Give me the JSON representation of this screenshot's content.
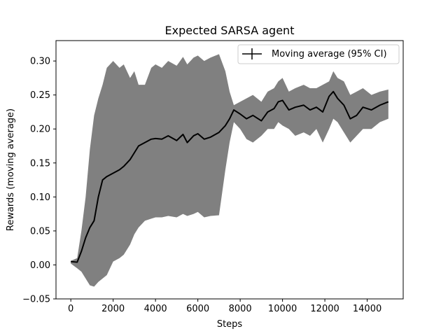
{
  "chart_data": {
    "type": "line",
    "title": "Expected SARSA agent",
    "xlabel": "Steps",
    "ylabel": "Rewards (moving average)",
    "xlim": [
      -700,
      15700
    ],
    "ylim": [
      -0.05,
      0.33
    ],
    "xticks": [
      0,
      2000,
      4000,
      6000,
      8000,
      10000,
      12000,
      14000
    ],
    "yticks": [
      -0.05,
      0.0,
      0.05,
      0.1,
      0.15,
      0.2,
      0.25,
      0.3
    ],
    "xtick_labels": [
      "0",
      "2000",
      "4000",
      "6000",
      "8000",
      "10000",
      "12000",
      "14000"
    ],
    "ytick_labels": [
      "−0.05",
      "0.00",
      "0.05",
      "0.10",
      "0.15",
      "0.20",
      "0.25",
      "0.30"
    ],
    "grid": false,
    "legend_position": "top-right",
    "colors": {
      "line": "#000000",
      "band": "#808080"
    },
    "series": [
      {
        "name": "Moving average (95% CI)",
        "x": [
          0,
          300,
          500,
          700,
          900,
          1100,
          1300,
          1500,
          1700,
          2000,
          2300,
          2500,
          2800,
          3000,
          3200,
          3500,
          3800,
          4000,
          4300,
          4600,
          5000,
          5300,
          5500,
          5800,
          6000,
          6300,
          6600,
          7000,
          7300,
          7500,
          7700,
          8000,
          8300,
          8600,
          9000,
          9300,
          9600,
          9800,
          10000,
          10300,
          10600,
          11000,
          11300,
          11600,
          11900,
          12200,
          12400,
          12600,
          12900,
          13200,
          13500,
          13800,
          14200,
          14600,
          15000
        ],
        "y": [
          0.005,
          0.004,
          0.02,
          0.04,
          0.055,
          0.065,
          0.1,
          0.125,
          0.13,
          0.135,
          0.14,
          0.145,
          0.155,
          0.165,
          0.175,
          0.18,
          0.185,
          0.186,
          0.185,
          0.19,
          0.183,
          0.192,
          0.18,
          0.19,
          0.193,
          0.185,
          0.188,
          0.195,
          0.205,
          0.215,
          0.228,
          0.222,
          0.215,
          0.22,
          0.212,
          0.225,
          0.23,
          0.24,
          0.242,
          0.228,
          0.232,
          0.235,
          0.228,
          0.232,
          0.225,
          0.248,
          0.255,
          0.245,
          0.235,
          0.215,
          0.22,
          0.232,
          0.228,
          0.235,
          0.24
        ],
        "ci_lower": [
          0.002,
          -0.005,
          -0.01,
          -0.02,
          -0.03,
          -0.032,
          -0.025,
          -0.02,
          -0.015,
          0.005,
          0.01,
          0.015,
          0.03,
          0.045,
          0.055,
          0.065,
          0.068,
          0.07,
          0.07,
          0.072,
          0.07,
          0.075,
          0.072,
          0.075,
          0.078,
          0.07,
          0.072,
          0.073,
          0.14,
          0.18,
          0.21,
          0.2,
          0.185,
          0.18,
          0.19,
          0.2,
          0.2,
          0.21,
          0.205,
          0.2,
          0.19,
          0.195,
          0.19,
          0.2,
          0.18,
          0.2,
          0.215,
          0.21,
          0.195,
          0.18,
          0.19,
          0.2,
          0.2,
          0.21,
          0.215
        ],
        "ci_upper": [
          0.006,
          0.01,
          0.05,
          0.1,
          0.17,
          0.22,
          0.245,
          0.265,
          0.29,
          0.3,
          0.29,
          0.295,
          0.275,
          0.285,
          0.265,
          0.265,
          0.29,
          0.295,
          0.29,
          0.3,
          0.293,
          0.306,
          0.295,
          0.305,
          0.308,
          0.3,
          0.305,
          0.31,
          0.285,
          0.255,
          0.235,
          0.24,
          0.245,
          0.25,
          0.24,
          0.255,
          0.26,
          0.27,
          0.275,
          0.255,
          0.26,
          0.265,
          0.26,
          0.26,
          0.265,
          0.27,
          0.285,
          0.275,
          0.27,
          0.25,
          0.255,
          0.26,
          0.25,
          0.255,
          0.258
        ]
      }
    ]
  }
}
